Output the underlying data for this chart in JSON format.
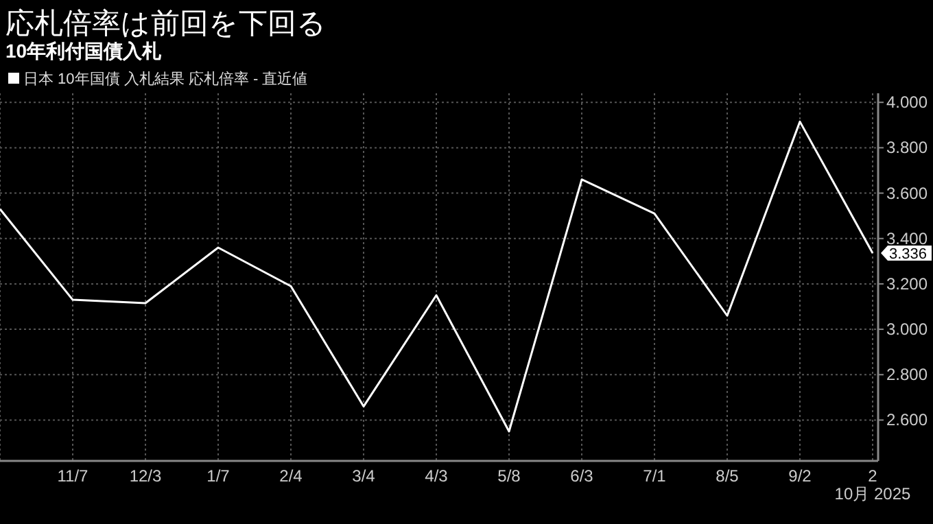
{
  "chart_data": {
    "type": "line",
    "title": "応札倍率は前回を下回る",
    "subtitle": "10年利付国債入札",
    "xlabel": "10月 2025",
    "categories": [
      null,
      "11/7",
      "12/3",
      "1/7",
      "2/4",
      "3/4",
      "4/3",
      "5/8",
      "6/3",
      "7/1",
      "8/5",
      "9/2",
      "2"
    ],
    "series": [
      {
        "name": "日本 10年国債 入札結果 応札倍率 - 直近値",
        "color": "#ffffff",
        "values": [
          3.53,
          3.13,
          3.115,
          3.36,
          3.19,
          2.66,
          3.15,
          2.55,
          3.66,
          3.51,
          3.06,
          3.915,
          3.336
        ],
        "value_labels": [
          null,
          null,
          null,
          null,
          null,
          null,
          null,
          null,
          null,
          null,
          null,
          null,
          "3.336"
        ]
      }
    ],
    "ylim": [
      2.42,
      4.04
    ],
    "yticks": [
      {
        "value": 2.6,
        "label": "2.600"
      },
      {
        "value": 2.8,
        "label": "2.800"
      },
      {
        "value": 3,
        "label": "3.000"
      },
      {
        "value": 3.2,
        "label": "3.200"
      },
      {
        "value": 3.4,
        "label": "3.400"
      },
      {
        "value": 3.6,
        "label": "3.600"
      },
      {
        "value": 3.8,
        "label": "3.800"
      },
      {
        "value": 4,
        "label": "4.000"
      }
    ],
    "grid": true,
    "legend": "top left",
    "marker": "none",
    "line_style": "solid"
  }
}
